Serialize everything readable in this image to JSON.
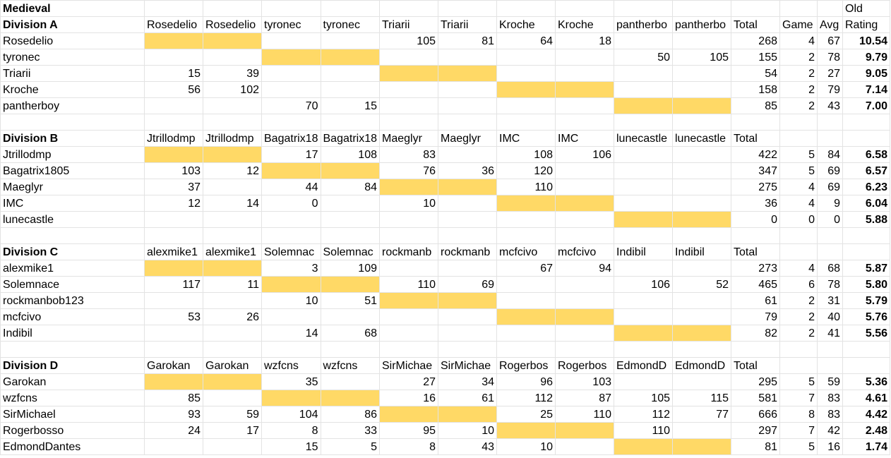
{
  "title": "Medieval",
  "old_label": "Old",
  "column_labels": {
    "total": "Total",
    "game": "Game",
    "avg": "Avg",
    "rating": "Rating"
  },
  "divisions": [
    {
      "name": "Division A",
      "col_headers": [
        "Rosedelio",
        "Rosedelio",
        "tyronec",
        "tyronec",
        "Triarii",
        "Triarii",
        "Kroche",
        "Kroche",
        "pantherbo",
        "pantherbo"
      ],
      "players": [
        {
          "name": "Rosedelio",
          "cells": [
            "",
            "",
            "",
            "",
            "105",
            "81",
            "64",
            "18",
            "",
            ""
          ],
          "total": "268",
          "game": "4",
          "avg": "67",
          "rating": "10.54"
        },
        {
          "name": "tyronec",
          "cells": [
            "",
            "",
            "",
            "",
            "",
            "",
            "",
            "",
            "50",
            "105"
          ],
          "total": "155",
          "game": "2",
          "avg": "78",
          "rating": "9.79"
        },
        {
          "name": "Triarii",
          "cells": [
            "15",
            "39",
            "",
            "",
            "",
            "",
            "",
            "",
            "",
            ""
          ],
          "total": "54",
          "game": "2",
          "avg": "27",
          "rating": "9.05"
        },
        {
          "name": "Kroche",
          "cells": [
            "56",
            "102",
            "",
            "",
            "",
            "",
            "",
            "",
            "",
            ""
          ],
          "total": "158",
          "game": "2",
          "avg": "79",
          "rating": "7.14"
        },
        {
          "name": "pantherboy",
          "cells": [
            "",
            "",
            "70",
            "15",
            "",
            "",
            "",
            "",
            "",
            ""
          ],
          "total": "85",
          "game": "2",
          "avg": "43",
          "rating": "7.00"
        }
      ]
    },
    {
      "name": "Division B",
      "col_headers": [
        "Jtrillodmp",
        "Jtrillodmp",
        "Bagatrix18",
        "Bagatrix18",
        "Maeglyr",
        "Maeglyr",
        "IMC",
        "IMC",
        "lunecastle",
        "lunecastle"
      ],
      "players": [
        {
          "name": "Jtrillodmp",
          "cells": [
            "",
            "",
            "17",
            "108",
            "83",
            "",
            "108",
            "106",
            "",
            ""
          ],
          "total": "422",
          "game": "5",
          "avg": "84",
          "rating": "6.58"
        },
        {
          "name": "Bagatrix1805",
          "cells": [
            "103",
            "12",
            "",
            "",
            "76",
            "36",
            "120",
            "",
            "",
            ""
          ],
          "total": "347",
          "game": "5",
          "avg": "69",
          "rating": "6.57"
        },
        {
          "name": "Maeglyr",
          "cells": [
            "37",
            "",
            "44",
            "84",
            "",
            "",
            "110",
            "",
            "",
            ""
          ],
          "total": "275",
          "game": "4",
          "avg": "69",
          "rating": "6.23"
        },
        {
          "name": "IMC",
          "cells": [
            "12",
            "14",
            "0",
            "",
            "10",
            "",
            "",
            "",
            "",
            ""
          ],
          "total": "36",
          "game": "4",
          "avg": "9",
          "rating": "6.04"
        },
        {
          "name": "lunecastle",
          "cells": [
            "",
            "",
            "",
            "",
            "",
            "",
            "",
            "",
            "",
            ""
          ],
          "total": "0",
          "game": "0",
          "avg": "0",
          "rating": "5.88"
        }
      ]
    },
    {
      "name": "Division C",
      "col_headers": [
        "alexmike1",
        "alexmike1",
        "Solemnac",
        "Solemnac",
        "rockmanb",
        "rockmanb",
        "mcfcivo",
        "mcfcivo",
        "Indibil",
        "Indibil"
      ],
      "players": [
        {
          "name": "alexmike1",
          "cells": [
            "",
            "",
            "3",
            "109",
            "",
            "",
            "67",
            "94",
            "",
            ""
          ],
          "total": "273",
          "game": "4",
          "avg": "68",
          "rating": "5.87"
        },
        {
          "name": "Solemnace",
          "cells": [
            "117",
            "11",
            "",
            "",
            "110",
            "69",
            "",
            "",
            "106",
            "52"
          ],
          "total": "465",
          "game": "6",
          "avg": "78",
          "rating": "5.80"
        },
        {
          "name": "rockmanbob123",
          "cells": [
            "",
            "",
            "10",
            "51",
            "",
            "",
            "",
            "",
            "",
            ""
          ],
          "total": "61",
          "game": "2",
          "avg": "31",
          "rating": "5.79"
        },
        {
          "name": "mcfcivo",
          "cells": [
            "53",
            "26",
            "",
            "",
            "",
            "",
            "",
            "",
            "",
            ""
          ],
          "total": "79",
          "game": "2",
          "avg": "40",
          "rating": "5.76"
        },
        {
          "name": "Indibil",
          "cells": [
            "",
            "",
            "14",
            "68",
            "",
            "",
            "",
            "",
            "",
            ""
          ],
          "total": "82",
          "game": "2",
          "avg": "41",
          "rating": "5.56"
        }
      ]
    },
    {
      "name": "Division D",
      "col_headers": [
        "Garokan",
        "Garokan",
        "wzfcns",
        "wzfcns",
        "SirMichae",
        "SirMichae",
        "Rogerbos",
        "Rogerbos",
        "EdmondD",
        "EdmondD"
      ],
      "players": [
        {
          "name": "Garokan",
          "cells": [
            "",
            "",
            "35",
            "",
            "27",
            "34",
            "96",
            "103",
            "",
            ""
          ],
          "total": "295",
          "game": "5",
          "avg": "59",
          "rating": "5.36"
        },
        {
          "name": "wzfcns",
          "cells": [
            "85",
            "",
            "",
            "",
            "16",
            "61",
            "112",
            "87",
            "105",
            "115"
          ],
          "total": "581",
          "game": "7",
          "avg": "83",
          "rating": "4.61"
        },
        {
          "name": "SirMichael",
          "cells": [
            "93",
            "59",
            "104",
            "86",
            "",
            "",
            "25",
            "110",
            "112",
            "77"
          ],
          "total": "666",
          "game": "8",
          "avg": "83",
          "rating": "4.42"
        },
        {
          "name": "Rogerbosso",
          "cells": [
            "24",
            "17",
            "8",
            "33",
            "95",
            "10",
            "",
            "",
            "110",
            ""
          ],
          "total": "297",
          "game": "7",
          "avg": "42",
          "rating": "2.48"
        },
        {
          "name": "EdmondDantes",
          "cells": [
            "",
            "",
            "15",
            "5",
            "8",
            "43",
            "10",
            "",
            "",
            ""
          ],
          "total": "81",
          "game": "5",
          "avg": "16",
          "rating": "1.74"
        }
      ]
    }
  ],
  "colors": {
    "highlight": "#ffd966",
    "grid": "#e3e3e3",
    "background": "#ffffff"
  }
}
